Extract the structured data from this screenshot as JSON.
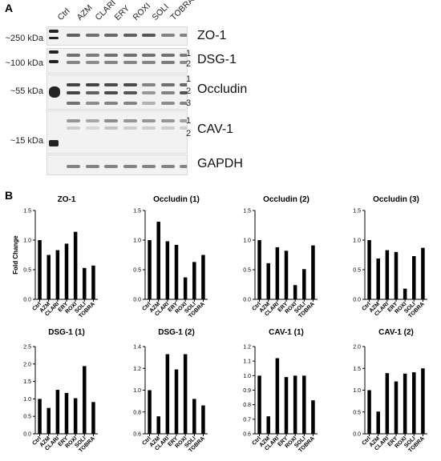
{
  "panels": {
    "a": "A",
    "b": "B"
  },
  "lanes": [
    "Ctrl",
    "AZM",
    "CLARI",
    "ERY",
    "ROXI",
    "SOLI",
    "TOBRA"
  ],
  "mw_labels": [
    "~250 kDa",
    "~100 kDa",
    "~55 kDa",
    "~15 kDa"
  ],
  "blots": [
    {
      "protein": "ZO-1",
      "bands": []
    },
    {
      "protein": "DSG-1",
      "bands": [
        "1",
        "2"
      ]
    },
    {
      "protein": "Occludin",
      "bands": [
        "1",
        "2",
        "3"
      ]
    },
    {
      "protein": "CAV-1",
      "bands": [
        "1",
        "2"
      ]
    },
    {
      "protein": "GAPDH",
      "bands": []
    }
  ],
  "chart_data": [
    {
      "type": "bar",
      "title": "ZO-1",
      "ylabel": "Fold Change",
      "categories": [
        "Ctrl",
        "AZM",
        "CLARI",
        "ERY",
        "ROXI",
        "SOLI",
        "TOBRA"
      ],
      "values": [
        1.0,
        0.75,
        0.83,
        0.94,
        1.14,
        0.53,
        0.57
      ],
      "ylim": [
        0.0,
        1.5
      ],
      "yticks": [
        "0.0",
        "0.5",
        "1.0",
        "1.5"
      ]
    },
    {
      "type": "bar",
      "title": "Occludin (1)",
      "ylabel": "",
      "categories": [
        "Ctrl",
        "AZM",
        "CLARI",
        "ERY",
        "ROXI",
        "SOLI",
        "TOBRA"
      ],
      "values": [
        1.0,
        1.31,
        0.98,
        0.92,
        0.37,
        0.63,
        0.75
      ],
      "ylim": [
        0.0,
        1.5
      ],
      "yticks": [
        "0.0",
        "0.5",
        "1.0",
        "1.5"
      ]
    },
    {
      "type": "bar",
      "title": "Occludin (2)",
      "ylabel": "",
      "categories": [
        "Ctrl",
        "AZM",
        "CLARI",
        "ERY",
        "ROXI",
        "SOLI",
        "TOBRA"
      ],
      "values": [
        1.0,
        0.61,
        0.88,
        0.82,
        0.24,
        0.51,
        0.91
      ],
      "ylim": [
        0.0,
        1.5
      ],
      "yticks": [
        "0.0",
        "0.5",
        "1.0",
        "1.5"
      ]
    },
    {
      "type": "bar",
      "title": "Occludin (3)",
      "ylabel": "",
      "categories": [
        "Ctrl",
        "AZM",
        "CLARI",
        "ERY",
        "ROXI",
        "SOLI",
        "TOBRA"
      ],
      "values": [
        1.0,
        0.69,
        0.83,
        0.8,
        0.18,
        0.73,
        0.87
      ],
      "ylim": [
        0.0,
        1.5
      ],
      "yticks": [
        "0.0",
        "0.5",
        "1.0",
        "1.5"
      ]
    },
    {
      "type": "bar",
      "title": "DSG-1 (1)",
      "ylabel": "",
      "categories": [
        "Ctrl",
        "AZM",
        "CLARI",
        "ERY",
        "ROXI",
        "SOLI",
        "TOBRA"
      ],
      "values": [
        1.0,
        0.74,
        1.26,
        1.17,
        1.02,
        1.94,
        0.91
      ],
      "ylim": [
        0.0,
        2.5
      ],
      "yticks": [
        "0.0",
        "0.5",
        "1.0",
        "1.5",
        "2.0",
        "2.5"
      ]
    },
    {
      "type": "bar",
      "title": "DSG-1 (2)",
      "ylabel": "",
      "categories": [
        "Ctrl",
        "AZM",
        "CLARI",
        "ERY",
        "ROXI",
        "SOLI",
        "TOBRA"
      ],
      "values": [
        1.0,
        0.76,
        1.33,
        1.19,
        1.33,
        0.92,
        0.86
      ],
      "ylim": [
        0.6,
        1.4
      ],
      "yticks": [
        "0.6",
        "0.8",
        "1.0",
        "1.2",
        "1.4"
      ]
    },
    {
      "type": "bar",
      "title": "CAV-1 (1)",
      "ylabel": "",
      "categories": [
        "Ctrl",
        "AZM",
        "CLARI",
        "ERY",
        "ROXI",
        "SOLI",
        "TOBRA"
      ],
      "values": [
        1.0,
        0.72,
        1.12,
        0.99,
        1.0,
        1.0,
        0.83
      ],
      "ylim": [
        0.6,
        1.2
      ],
      "yticks": [
        "0.6",
        "0.7",
        "0.8",
        "0.9",
        "1.0",
        "1.1",
        "1.2"
      ]
    },
    {
      "type": "bar",
      "title": "CAV-1 (2)",
      "ylabel": "",
      "categories": [
        "Ctrl",
        "AZM",
        "CLARI",
        "ERY",
        "ROXI",
        "SOLI",
        "TOBRA"
      ],
      "values": [
        1.0,
        0.51,
        1.39,
        1.2,
        1.38,
        1.41,
        1.5
      ],
      "ylim": [
        0.0,
        2.0
      ],
      "yticks": [
        "0.0",
        "0.5",
        "1.0",
        "1.5",
        "2.0"
      ]
    }
  ]
}
